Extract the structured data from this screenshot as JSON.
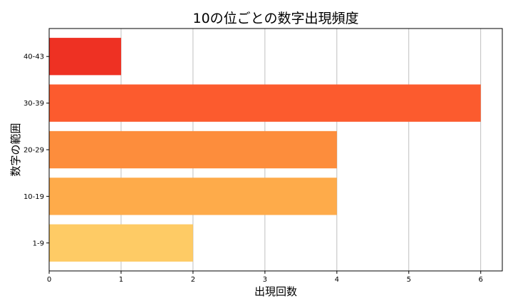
{
  "chart_data": {
    "type": "bar",
    "orientation": "horizontal",
    "title": "10の位ごとの数字出現頻度",
    "xlabel": "出現回数",
    "ylabel": "数字の範囲",
    "categories": [
      "1-9",
      "10-19",
      "20-29",
      "30-39",
      "40-43"
    ],
    "values": [
      2,
      4,
      4,
      6,
      1
    ],
    "colors": [
      "#fecb65",
      "#feab4a",
      "#fd8d3c",
      "#fc5b2e",
      "#ee3123"
    ],
    "xlim": [
      0,
      6.3
    ],
    "xticks": [
      0,
      1,
      2,
      3,
      4,
      5,
      6
    ],
    "grid": "x"
  }
}
